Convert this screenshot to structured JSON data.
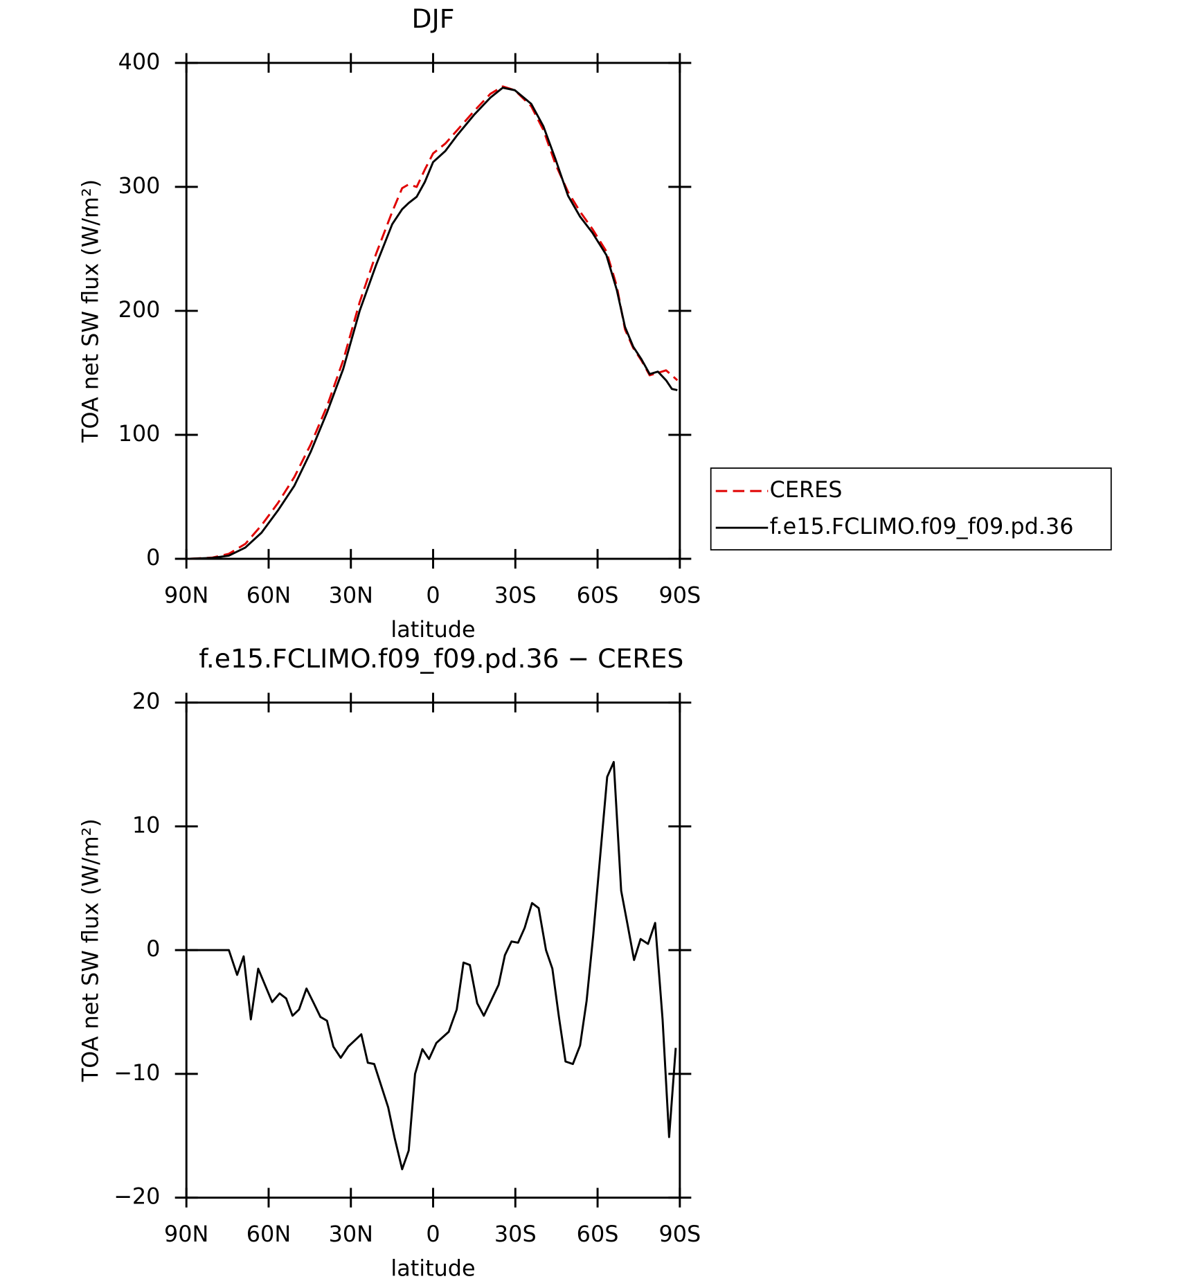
{
  "chart_data": [
    {
      "type": "line",
      "title": "DJF",
      "x_label": "latitude",
      "y_label": "TOA net SW flux (W/m²)",
      "x": [
        88.8,
        80.5,
        74.5,
        68.5,
        62.6,
        56.6,
        50.6,
        44.7,
        38.7,
        32.8,
        26.8,
        20.8,
        14.9,
        11.3,
        8.9,
        6.0,
        3.0,
        0,
        -4.5,
        -8.9,
        -14.9,
        -20.9,
        -25.4,
        -29.8,
        -35.8,
        -40.2,
        -44.7,
        -49.2,
        -53.6,
        -58.1,
        -63.2,
        -67.0,
        -70.0,
        -73.0,
        -76.0,
        -79.0,
        -82.0,
        -85.0,
        -87.1,
        -89.1
      ],
      "series": [
        {
          "name": "CERES",
          "color": "#e00000",
          "dash": "dashed",
          "values": [
            0,
            1,
            4,
            12,
            27,
            45,
            66,
            92,
            123,
            160,
            207,
            246,
            280,
            299,
            302,
            300,
            314,
            327,
            335,
            346,
            361,
            375,
            381,
            378,
            365,
            346,
            318,
            296,
            280,
            266,
            248,
            220,
            185,
            170,
            160,
            148,
            150,
            152,
            148,
            144
          ]
        },
        {
          "name": "f.e15.FCLIMO.f09_f09.pd.36",
          "color": "#000000",
          "values": [
            0,
            0.7,
            2.6,
            9,
            21,
            39,
            59,
            86,
            118,
            153,
            200,
            237,
            270,
            282,
            287,
            292,
            304,
            320,
            329,
            342,
            358,
            372,
            380,
            378,
            367,
            349,
            322,
            293,
            276,
            263,
            245,
            217,
            187,
            171,
            161,
            149,
            151,
            144,
            137,
            136
          ]
        }
      ],
      "xlim": [
        90,
        -90
      ],
      "xticks": [
        {
          "value": 90,
          "label": "90N"
        },
        {
          "value": 60,
          "label": "60N"
        },
        {
          "value": 30,
          "label": "30N"
        },
        0,
        {
          "value": -30,
          "label": "30S"
        },
        {
          "value": -60,
          "label": "60S"
        },
        {
          "value": -90,
          "label": "90S"
        }
      ],
      "ylim": [
        0,
        400
      ],
      "yticks": [
        0,
        100,
        200,
        300,
        400
      ],
      "legend": "right"
    },
    {
      "type": "line",
      "title": "f.e15.FCLIMO.f09_f09.pd.36 − CERES",
      "x_label": "latitude",
      "y_label": "TOA net SW flux (W/m²)",
      "x": [
        88.8,
        74.5,
        71.5,
        69.1,
        66.5,
        63.8,
        58.7,
        56.0,
        53.6,
        51.3,
        48.9,
        46.2,
        43.5,
        41.1,
        38.7,
        36.4,
        33.7,
        31.0,
        26.2,
        23.8,
        21.5,
        16.4,
        14.0,
        11.3,
        8.9,
        6.6,
        3.9,
        1.5,
        -1.2,
        -5.7,
        -8.6,
        -11.1,
        -13.4,
        -16.1,
        -18.5,
        -20.9,
        -23.9,
        -26.2,
        -28.6,
        -31.0,
        -33.4,
        -36.1,
        -38.5,
        -41.2,
        -43.5,
        -45.9,
        -48.3,
        -51.0,
        -53.6,
        -56.0,
        -58.4,
        -60.8,
        -63.5,
        -65.9,
        -68.6,
        -71.0,
        -73.3,
        -75.7,
        -78.4,
        -81.0,
        -83.7,
        -86.1,
        -88.5
      ],
      "values": [
        0,
        0,
        -2,
        -0.5,
        -5.6,
        -1.5,
        -4.2,
        -3.5,
        -3.9,
        -5.3,
        -4.8,
        -3.1,
        -4.3,
        -5.4,
        -5.7,
        -7.8,
        -8.7,
        -7.8,
        -6.8,
        -9.1,
        -9.2,
        -12.7,
        -15.2,
        -17.7,
        -16.2,
        -10.0,
        -8.0,
        -8.8,
        -7.5,
        -6.6,
        -4.8,
        -1.0,
        -1.2,
        -4.3,
        -5.3,
        -4.2,
        -2.8,
        -0.4,
        0.7,
        0.6,
        1.8,
        3.8,
        3.4,
        0,
        -1.5,
        -5.4,
        -9.0,
        -9.2,
        -7.7,
        -4.1,
        1.2,
        7.2,
        14.0,
        15.2,
        4.8,
        2.0,
        -0.8,
        0.9,
        0.5,
        2.2,
        -5.6,
        -15.1,
        -7.9
      ],
      "color": "#000000",
      "xlim": [
        90,
        -90
      ],
      "xticks": [
        {
          "value": 90,
          "label": "90N"
        },
        {
          "value": 60,
          "label": "60N"
        },
        {
          "value": 30,
          "label": "30N"
        },
        0,
        {
          "value": -30,
          "label": "30S"
        },
        {
          "value": -60,
          "label": "60S"
        },
        {
          "value": -90,
          "label": "90S"
        }
      ],
      "ylim": [
        -20,
        20
      ],
      "yticks": [
        {
          "value": -20,
          "label": "−20"
        },
        {
          "value": -10,
          "label": "−10"
        },
        0,
        10,
        20
      ]
    }
  ]
}
